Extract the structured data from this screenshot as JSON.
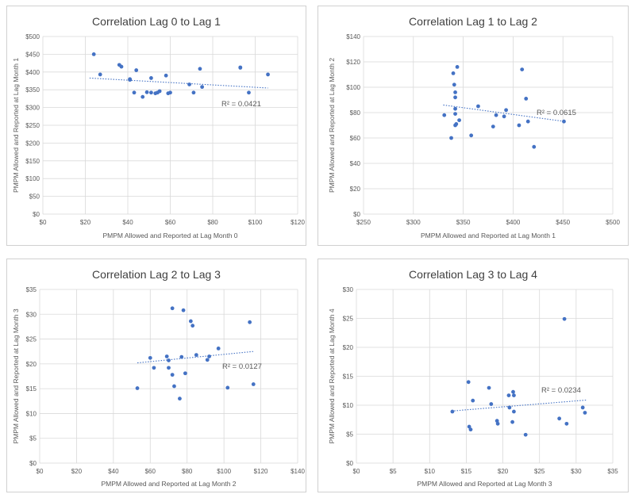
{
  "chart_data": [
    {
      "type": "scatter",
      "title": "Correlation Lag 0 to Lag 1",
      "xlabel": "PMPM Allowed and Reported at Lag Month 0",
      "ylabel": "PMPM Allowed and Reported at Lag Month 1",
      "xlim": [
        0,
        120
      ],
      "ylim": [
        0,
        500
      ],
      "xticks": [
        0,
        20,
        40,
        60,
        80,
        100,
        120
      ],
      "xtick_labels": [
        "$0",
        "$20",
        "$40",
        "$60",
        "$80",
        "$100",
        "$120"
      ],
      "yticks": [
        0,
        50,
        100,
        150,
        200,
        250,
        300,
        350,
        400,
        450,
        500
      ],
      "ytick_labels": [
        "$0",
        "$50",
        "$100",
        "$150",
        "$200",
        "$250",
        "$300",
        "$350",
        "$400",
        "$450",
        "$500"
      ],
      "grid": true,
      "legend": "none",
      "color": "#4472c4",
      "trendline": {
        "type": "linear",
        "x": [
          22,
          106
        ],
        "y": [
          383,
          355
        ],
        "r2_label": "R² = 0.0421"
      },
      "points": [
        {
          "x": 24,
          "y": 450
        },
        {
          "x": 27,
          "y": 393
        },
        {
          "x": 36,
          "y": 420
        },
        {
          "x": 37,
          "y": 415
        },
        {
          "x": 41,
          "y": 380
        },
        {
          "x": 41,
          "y": 378
        },
        {
          "x": 43,
          "y": 342
        },
        {
          "x": 44,
          "y": 405
        },
        {
          "x": 47,
          "y": 330
        },
        {
          "x": 49,
          "y": 343
        },
        {
          "x": 51,
          "y": 383
        },
        {
          "x": 51,
          "y": 342
        },
        {
          "x": 53,
          "y": 340
        },
        {
          "x": 54,
          "y": 342
        },
        {
          "x": 55,
          "y": 346
        },
        {
          "x": 58,
          "y": 390
        },
        {
          "x": 59,
          "y": 340
        },
        {
          "x": 60,
          "y": 342
        },
        {
          "x": 69,
          "y": 365
        },
        {
          "x": 71,
          "y": 342
        },
        {
          "x": 74,
          "y": 409
        },
        {
          "x": 75,
          "y": 358
        },
        {
          "x": 93,
          "y": 413
        },
        {
          "x": 93,
          "y": 412
        },
        {
          "x": 97,
          "y": 342
        },
        {
          "x": 106,
          "y": 393
        }
      ]
    },
    {
      "type": "scatter",
      "title": "Correlation Lag 1 to Lag 2",
      "xlabel": "PMPM Allowed and Reported at Lag Month 1",
      "ylabel": "PMPM Allowed and Reported at Lag Month 2",
      "xlim": [
        250,
        500
      ],
      "ylim": [
        0,
        140
      ],
      "xticks": [
        250,
        300,
        350,
        400,
        450,
        500
      ],
      "xtick_labels": [
        "$250",
        "$300",
        "$350",
        "$400",
        "$450",
        "$500"
      ],
      "yticks": [
        0,
        20,
        40,
        60,
        80,
        100,
        120,
        140
      ],
      "ytick_labels": [
        "$0",
        "$20",
        "$40",
        "$60",
        "$80",
        "$100",
        "$120",
        "$140"
      ],
      "grid": true,
      "legend": "none",
      "color": "#4472c4",
      "trendline": {
        "type": "linear",
        "x": [
          330,
          452
        ],
        "y": [
          86,
          73
        ],
        "r2_label": "R² = 0.0615"
      },
      "points": [
        {
          "x": 331,
          "y": 78
        },
        {
          "x": 338,
          "y": 60
        },
        {
          "x": 340,
          "y": 111
        },
        {
          "x": 341,
          "y": 102
        },
        {
          "x": 342,
          "y": 96
        },
        {
          "x": 342,
          "y": 92
        },
        {
          "x": 342,
          "y": 83
        },
        {
          "x": 342,
          "y": 79
        },
        {
          "x": 342,
          "y": 70
        },
        {
          "x": 343,
          "y": 71
        },
        {
          "x": 344,
          "y": 116
        },
        {
          "x": 346,
          "y": 74
        },
        {
          "x": 358,
          "y": 62
        },
        {
          "x": 365,
          "y": 85
        },
        {
          "x": 380,
          "y": 69
        },
        {
          "x": 383,
          "y": 78
        },
        {
          "x": 391,
          "y": 77
        },
        {
          "x": 393,
          "y": 82
        },
        {
          "x": 406,
          "y": 70
        },
        {
          "x": 409,
          "y": 114
        },
        {
          "x": 413,
          "y": 91
        },
        {
          "x": 415,
          "y": 73
        },
        {
          "x": 421,
          "y": 53
        },
        {
          "x": 451,
          "y": 73
        }
      ]
    },
    {
      "type": "scatter",
      "title": "Correlation Lag 2 to Lag 3",
      "xlabel": "PMPM Allowed and Reported at Lag Month 2",
      "ylabel": "PMPM Allowed and Reported at Lag Month 3",
      "xlim": [
        0,
        140
      ],
      "ylim": [
        0,
        35
      ],
      "xticks": [
        0,
        20,
        40,
        60,
        80,
        100,
        120,
        140
      ],
      "xtick_labels": [
        "$0",
        "$20",
        "$40",
        "$60",
        "$80",
        "$100",
        "$120",
        "$140"
      ],
      "yticks": [
        0,
        5,
        10,
        15,
        20,
        25,
        30,
        35
      ],
      "ytick_labels": [
        "$0",
        "$5",
        "$10",
        "$15",
        "$20",
        "$25",
        "$30",
        "$35"
      ],
      "grid": true,
      "legend": "none",
      "color": "#4472c4",
      "trendline": {
        "type": "linear",
        "x": [
          53,
          116
        ],
        "y": [
          20.2,
          22.5
        ],
        "r2_label": "R² = 0.0127"
      },
      "points": [
        {
          "x": 53,
          "y": 15.1
        },
        {
          "x": 60,
          "y": 21.2
        },
        {
          "x": 62,
          "y": 19.2
        },
        {
          "x": 69,
          "y": 21.5
        },
        {
          "x": 70,
          "y": 20.7
        },
        {
          "x": 70,
          "y": 19.2
        },
        {
          "x": 72,
          "y": 31.2
        },
        {
          "x": 72,
          "y": 17.8
        },
        {
          "x": 73,
          "y": 15.5
        },
        {
          "x": 76,
          "y": 13.0
        },
        {
          "x": 77,
          "y": 21.4
        },
        {
          "x": 78,
          "y": 30.8
        },
        {
          "x": 79,
          "y": 18.1
        },
        {
          "x": 82,
          "y": 28.6
        },
        {
          "x": 83,
          "y": 27.7
        },
        {
          "x": 85,
          "y": 21.8
        },
        {
          "x": 91,
          "y": 20.8
        },
        {
          "x": 92,
          "y": 21.5
        },
        {
          "x": 97,
          "y": 23.1
        },
        {
          "x": 102,
          "y": 15.2
        },
        {
          "x": 114,
          "y": 28.4
        },
        {
          "x": 116,
          "y": 15.9
        }
      ]
    },
    {
      "type": "scatter",
      "title": "Correlation Lag 3 to Lag 4",
      "xlabel": "PMPM Allowed and Reported at Lag Month 3",
      "ylabel": "PMPM Allowed and Reported at Lag Month 4",
      "xlim": [
        0,
        35
      ],
      "ylim": [
        0,
        30
      ],
      "xticks": [
        0,
        5,
        10,
        15,
        20,
        25,
        30,
        35
      ],
      "xtick_labels": [
        "$0",
        "$5",
        "$10",
        "$15",
        "$20",
        "$25",
        "$30",
        "$35"
      ],
      "yticks": [
        0,
        5,
        10,
        15,
        20,
        25,
        30
      ],
      "ytick_labels": [
        "$0",
        "$5",
        "$10",
        "$15",
        "$20",
        "$25",
        "$30"
      ],
      "grid": true,
      "legend": "none",
      "color": "#4472c4",
      "trendline": {
        "type": "linear",
        "x": [
          13,
          31.5
        ],
        "y": [
          9.0,
          10.9
        ],
        "r2_label": "R² = 0.0234"
      },
      "points": [
        {
          "x": 13.1,
          "y": 8.9
        },
        {
          "x": 15.3,
          "y": 14.0
        },
        {
          "x": 15.4,
          "y": 6.3
        },
        {
          "x": 15.6,
          "y": 5.8
        },
        {
          "x": 15.9,
          "y": 10.8
        },
        {
          "x": 18.1,
          "y": 13.0
        },
        {
          "x": 18.4,
          "y": 10.2
        },
        {
          "x": 19.2,
          "y": 7.3
        },
        {
          "x": 19.3,
          "y": 6.8
        },
        {
          "x": 20.8,
          "y": 11.7
        },
        {
          "x": 20.9,
          "y": 9.6
        },
        {
          "x": 21.3,
          "y": 7.1
        },
        {
          "x": 21.4,
          "y": 12.3
        },
        {
          "x": 21.5,
          "y": 11.7
        },
        {
          "x": 21.5,
          "y": 8.9
        },
        {
          "x": 23.1,
          "y": 4.9
        },
        {
          "x": 27.7,
          "y": 7.7
        },
        {
          "x": 28.4,
          "y": 24.9
        },
        {
          "x": 28.7,
          "y": 6.8
        },
        {
          "x": 30.9,
          "y": 9.6
        },
        {
          "x": 31.2,
          "y": 8.7
        }
      ]
    }
  ]
}
